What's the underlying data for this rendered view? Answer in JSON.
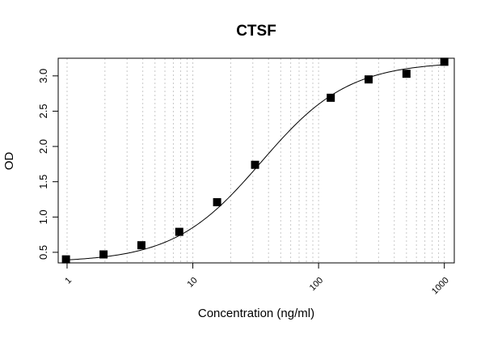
{
  "chart_data": {
    "type": "scatter",
    "title": "CTSF",
    "xlabel": "Concentration (ng/ml)",
    "ylabel": "OD",
    "x_scale": "log",
    "xlim": [
      0.85,
      1200
    ],
    "ylim": [
      0.35,
      3.25
    ],
    "x_ticks": [
      1,
      10,
      100,
      1000
    ],
    "x_tick_labels": [
      "1",
      "10",
      "100",
      "1000"
    ],
    "y_ticks": [
      0.5,
      1.0,
      1.5,
      2.0,
      2.5,
      3.0
    ],
    "y_tick_labels": [
      "0.5",
      "1.0",
      "1.5",
      "2.0",
      "2.5",
      "3.0"
    ],
    "grid": "vertical dotted at log minor ticks",
    "series": [
      {
        "marker": "square",
        "color": "#000000",
        "x": [
          0.98,
          1.95,
          3.9,
          7.8,
          15.6,
          31.25,
          125,
          250,
          500,
          1000
        ],
        "y": [
          0.4,
          0.47,
          0.6,
          0.79,
          1.21,
          1.74,
          2.69,
          2.95,
          3.03,
          3.2
        ]
      }
    ],
    "fit_curve": {
      "model": "4PL",
      "bottom": 0.36,
      "top": 3.2,
      "ec50": 35,
      "hill": 1.25,
      "color": "#000000"
    }
  }
}
